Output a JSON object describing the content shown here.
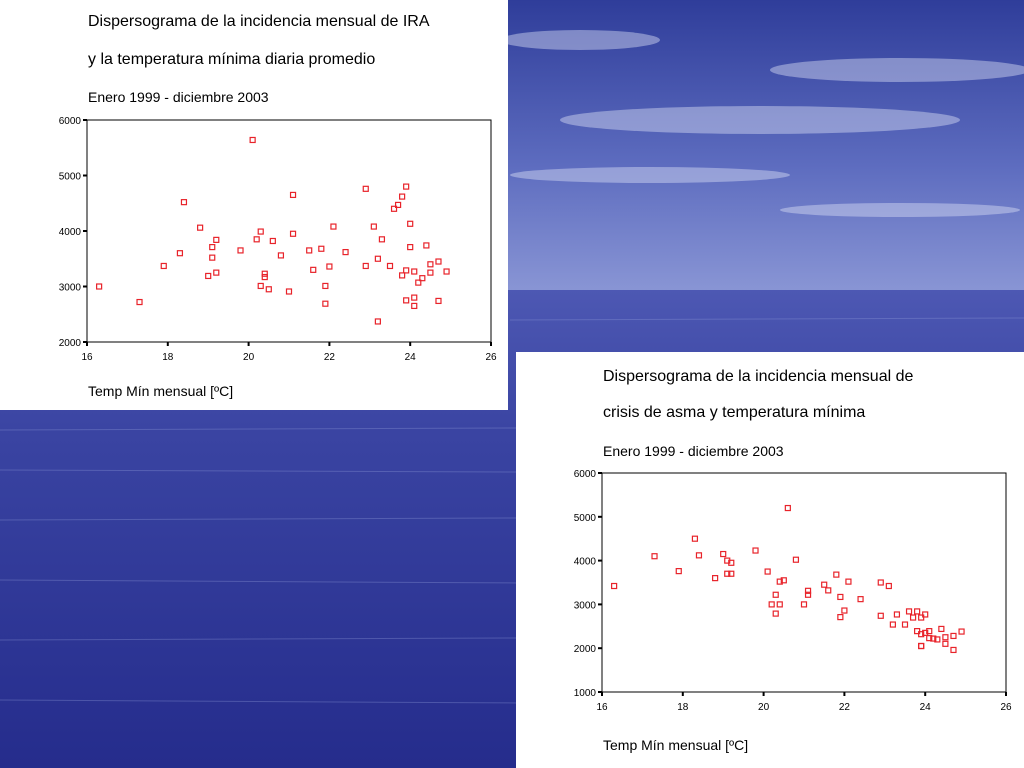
{
  "slide": {
    "panels": [
      {
        "title_line1": "Dispersograma de la incidencia mensual de IRA",
        "title_line2": "y la temperatura mínima diaria promedio",
        "subtitle": "Enero 1999 - diciembre 2003"
      },
      {
        "title_line1": "Dispersograma de la incidencia mensual de",
        "title_line2": "crisis de asma y  temperatura mínima",
        "subtitle": "Enero 1999 - diciembre 2003"
      }
    ],
    "colors": {
      "background": "#27318f",
      "marker": "#e8232a",
      "panel": "#ffffff"
    }
  },
  "chart_data": [
    {
      "type": "scatter",
      "title": "Dispersograma de la incidencia mensual de IRA y la temperatura mínima diaria promedio",
      "subtitle": "Enero 1999 - diciembre 2003",
      "xlabel": "Temp Mín mensual [ºC]",
      "ylabel": "",
      "xlim": [
        16,
        26
      ],
      "ylim": [
        2000,
        6000
      ],
      "xticks": [
        16,
        18,
        20,
        22,
        24,
        26
      ],
      "yticks": [
        2000,
        3000,
        4000,
        5000,
        6000
      ],
      "grid": false,
      "series": [
        {
          "x": [
            16.3,
            17.3,
            17.9,
            18.3,
            18.4,
            18.8,
            19.0,
            19.1,
            19.1,
            19.2,
            19.2,
            19.8,
            20.1,
            20.2,
            20.3,
            20.3,
            20.4,
            20.4,
            20.5,
            20.6,
            20.8,
            21.0,
            21.1,
            21.1,
            21.5,
            21.6,
            21.8,
            21.9,
            21.9,
            22.0,
            22.1,
            22.4,
            22.9,
            22.9,
            23.1,
            23.2,
            23.2,
            23.3,
            23.5,
            23.6,
            23.7,
            23.8,
            23.8,
            23.9,
            23.9,
            23.9,
            24.0,
            24.0,
            24.1,
            24.1,
            24.1,
            24.2,
            24.3,
            24.4,
            24.5,
            24.5,
            24.7,
            24.7,
            24.9
          ],
          "y": [
            3000,
            2720,
            3370,
            3600,
            4520,
            4060,
            3190,
            3710,
            3520,
            3250,
            3840,
            3650,
            5640,
            3850,
            3990,
            3010,
            3230,
            3170,
            2950,
            3820,
            3560,
            2910,
            4650,
            3950,
            3650,
            3300,
            3680,
            3010,
            2690,
            3360,
            4080,
            3620,
            3370,
            4760,
            4080,
            2370,
            3500,
            3850,
            3370,
            4400,
            4470,
            4620,
            3200,
            4800,
            3290,
            2750,
            4130,
            3710,
            3270,
            2650,
            2800,
            3070,
            3150,
            3740,
            3250,
            3400,
            3450,
            2740,
            3270
          ]
        }
      ]
    },
    {
      "type": "scatter",
      "title": "Dispersograma de la incidencia mensual de crisis de asma y  temperatura mínima",
      "subtitle": "Enero 1999 - diciembre 2003",
      "xlabel": "Temp Mín mensual [ºC]",
      "ylabel": "",
      "xlim": [
        16,
        26
      ],
      "ylim": [
        1000,
        6000
      ],
      "xticks": [
        16,
        18,
        20,
        22,
        24,
        26
      ],
      "yticks": [
        1000,
        2000,
        3000,
        4000,
        5000,
        6000
      ],
      "grid": false,
      "series": [
        {
          "x": [
            16.3,
            17.3,
            17.9,
            18.3,
            18.4,
            18.8,
            19.0,
            19.1,
            19.1,
            19.2,
            19.2,
            19.8,
            20.1,
            20.2,
            20.3,
            20.3,
            20.4,
            20.4,
            20.5,
            20.6,
            20.8,
            21.0,
            21.1,
            21.1,
            21.5,
            21.6,
            21.8,
            21.9,
            21.9,
            22.0,
            22.1,
            22.4,
            22.9,
            22.9,
            23.1,
            23.2,
            23.3,
            23.5,
            23.6,
            23.7,
            23.8,
            23.8,
            23.9,
            23.9,
            23.9,
            24.0,
            24.0,
            24.1,
            24.1,
            24.2,
            24.3,
            24.4,
            24.5,
            24.5,
            24.7,
            24.7,
            24.9,
            23.9
          ],
          "y": [
            3420,
            4100,
            3760,
            4500,
            4120,
            3600,
            4150,
            4000,
            3700,
            3950,
            3700,
            4230,
            3750,
            3000,
            3220,
            2790,
            3520,
            3000,
            3550,
            5200,
            4020,
            3000,
            3310,
            3220,
            3450,
            3320,
            3680,
            2710,
            3170,
            2860,
            3520,
            3120,
            3500,
            2740,
            3420,
            2540,
            2770,
            2540,
            2840,
            2700,
            2390,
            2840,
            2320,
            2050,
            2050,
            2770,
            2350,
            2230,
            2390,
            2220,
            2200,
            2440,
            2250,
            2100,
            2280,
            1960,
            2380,
            2700
          ]
        }
      ]
    }
  ]
}
